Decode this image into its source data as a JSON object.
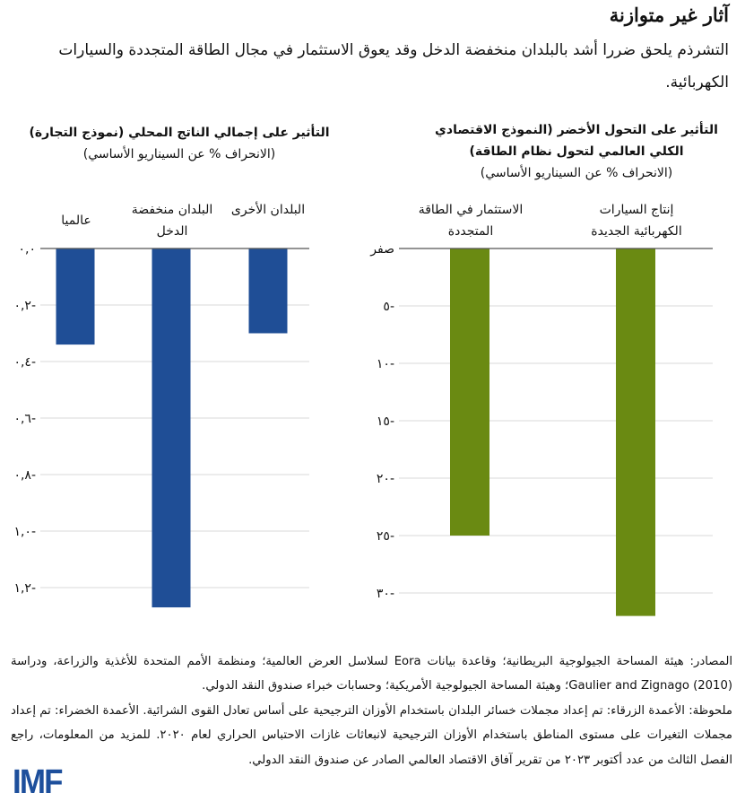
{
  "title": "آثار غير متوازنة",
  "subtitle": "التشرذم يلحق ضررا أشد بالبلدان منخفضة الدخل وقد يعوق الاستثمار في مجال الطاقة المتجددة والسيارات الكهربائية.",
  "colors": {
    "blue": "#1f4e96",
    "green": "#6a8a12",
    "grid": "#d9d9d9",
    "axis": "#555555"
  },
  "chart_data": [
    {
      "type": "bar",
      "title": "التأثير على إجمالي الناتج المحلي (نموذج التجارة)",
      "subtitle": "(الانحراف % عن السيناريو الأساسي)",
      "categories": [
        "البلدان الأخرى",
        "البلدان منخفضة الدخل",
        "عالميا"
      ],
      "values": [
        -0.3,
        -1.27,
        -0.34
      ],
      "ylim": [
        -1.3,
        0
      ],
      "yticks": [
        0,
        -0.2,
        -0.4,
        -0.6,
        -0.8,
        -1.0,
        -1.2
      ],
      "ytick_labels": [
        "٠,٠",
        "٠,٢-",
        "٠,٤-",
        "٠,٦-",
        "٠,٨-",
        "١,٠-",
        "١,٢-"
      ],
      "grid": true,
      "color": "#1f4e96"
    },
    {
      "type": "bar",
      "title": "التأثير على التحول الأخضر (النموذج الاقتصادي الكلي العالمي لتحول نظام الطاقة)",
      "subtitle": "(الانحراف % عن السيناريو الأساسي)",
      "categories": [
        "إنتاج السيارات الكهربائية الجديدة",
        "الاستثمار في الطاقة المتجددة"
      ],
      "values": [
        -32,
        -25
      ],
      "ylim": [
        -32,
        0
      ],
      "yticks": [
        0,
        -5,
        -10,
        -15,
        -20,
        -25,
        -30
      ],
      "ytick_labels": [
        "صفر",
        "٥-",
        "١٠-",
        "١٥-",
        "٢٠-",
        "٢٥-",
        "٣٠-"
      ],
      "grid": true,
      "color": "#6a8a12"
    }
  ],
  "notes": {
    "sources": "المصادر: هيئة المساحة الجيولوجية البريطانية؛ وقاعدة بيانات Eora لسلاسل العرض العالمية؛ ومنظمة الأمم المتحدة للأغذية والزراعة، ودراسة (2010) Gaulier and Zignago؛ وهيئة المساحة الجيولوجية الأمريكية؛ وحسابات خبراء صندوق النقد الدولي.",
    "note": "ملحوظة: الأعمدة الزرقاء: تم إعداد مجملات خسائر البلدان باستخدام الأوزان الترجيحية على أساس تعادل القوى الشرائية. الأعمدة الخضراء: تم إعداد مجملات التغيرات على مستوى المناطق باستخدام الأوزان الترجيحية لانبعاثات غازات الاحتباس الحراري لعام ٢٠٢٠. للمزيد من المعلومات، راجع الفصل الثالث من عدد أكتوبر ٢٠٢٣ من تقرير آفاق الاقتصاد العالمي الصادر عن صندوق النقد الدولي."
  },
  "logo": "IMF"
}
